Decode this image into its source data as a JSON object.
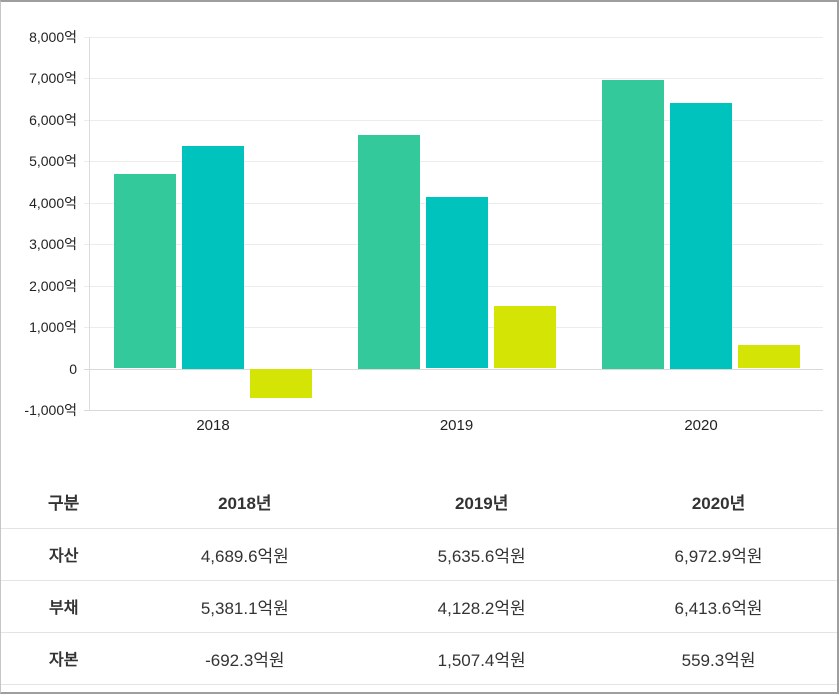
{
  "chart_data": {
    "type": "bar",
    "categories": [
      "2018",
      "2019",
      "2020"
    ],
    "series": [
      {
        "name": "자산",
        "color": "#33c99b",
        "values": [
          4689.6,
          5635.6,
          6972.9
        ]
      },
      {
        "name": "부채",
        "color": "#00c3bd",
        "values": [
          5381.1,
          4128.2,
          6413.6
        ]
      },
      {
        "name": "자본",
        "color": "#d4e405",
        "values": [
          -692.3,
          1507.4,
          559.3
        ]
      }
    ],
    "title": "",
    "xlabel": "",
    "ylabel": "",
    "ylim": [
      -1000,
      8000
    ],
    "ytick_step": 1000,
    "ytick_suffix": "억",
    "grid": true,
    "legend_position": "none"
  },
  "table": {
    "headers": [
      "구분",
      "2018년",
      "2019년",
      "2020년"
    ],
    "rows": [
      {
        "label": "자산",
        "values": [
          "4,689.6억원",
          "5,635.6억원",
          "6,972.9억원"
        ]
      },
      {
        "label": "부채",
        "values": [
          "5,381.1억원",
          "4,128.2억원",
          "6,413.6억원"
        ]
      },
      {
        "label": "자본",
        "values": [
          "-692.3억원",
          "1,507.4억원",
          "559.3억원"
        ]
      }
    ]
  },
  "colors": {
    "assets_bar": "#33c99b",
    "liabilities_bar": "#00c3bd",
    "equity_bar": "#d4e405",
    "gridline": "#ececec",
    "axis_text": "#222222",
    "table_text": "#333333"
  }
}
